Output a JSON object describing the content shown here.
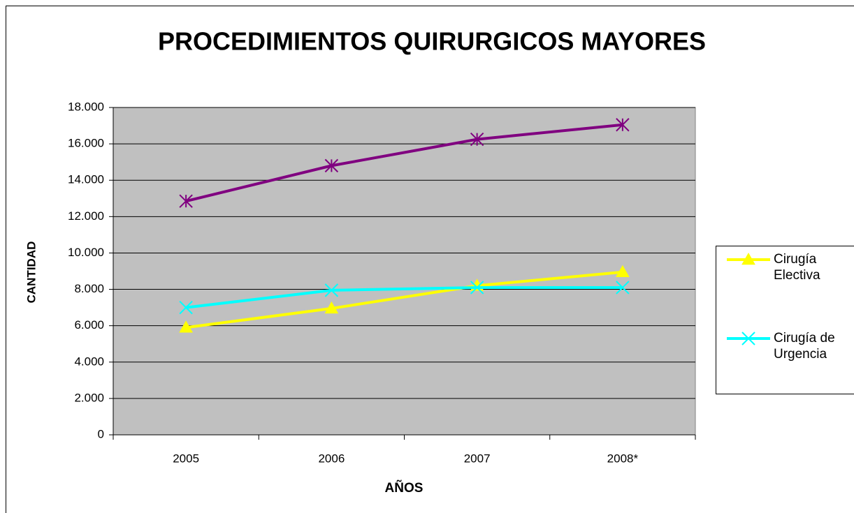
{
  "chart_data": {
    "type": "line",
    "title": "PROCEDIMIENTOS QUIRURGICOS MAYORES",
    "x_label": "AÑOS",
    "y_label": "CANTIDAD",
    "categories": [
      "2005",
      "2006",
      "2007",
      "2008*"
    ],
    "series": [
      {
        "name": "Cirugía Electiva",
        "color": "#ffff00",
        "marker": "triangle",
        "values": [
          5900,
          6950,
          8200,
          8950
        ]
      },
      {
        "name": "Cirugía de Urgencia",
        "color": "#00ffff",
        "marker": "x",
        "values": [
          7000,
          7950,
          8100,
          8100
        ]
      },
      {
        "color": "#800080",
        "marker": "star",
        "values": [
          12850,
          14800,
          16250,
          17050
        ]
      }
    ],
    "ylim": [
      0,
      18000
    ],
    "yticks": [
      0,
      {
        "value": 2000,
        "label": "2.000"
      },
      {
        "value": 4000,
        "label": "4.000"
      },
      {
        "value": 6000,
        "label": "6.000"
      },
      {
        "value": 8000,
        "label": "8.000"
      },
      {
        "value": 10000,
        "label": "10.000"
      },
      {
        "value": 12000,
        "label": "12.000"
      },
      {
        "value": 14000,
        "label": "14.000"
      },
      {
        "value": 16000,
        "label": "16.000"
      },
      {
        "value": 18000,
        "label": "18.000"
      }
    ],
    "grid": true,
    "legend": "right"
  }
}
